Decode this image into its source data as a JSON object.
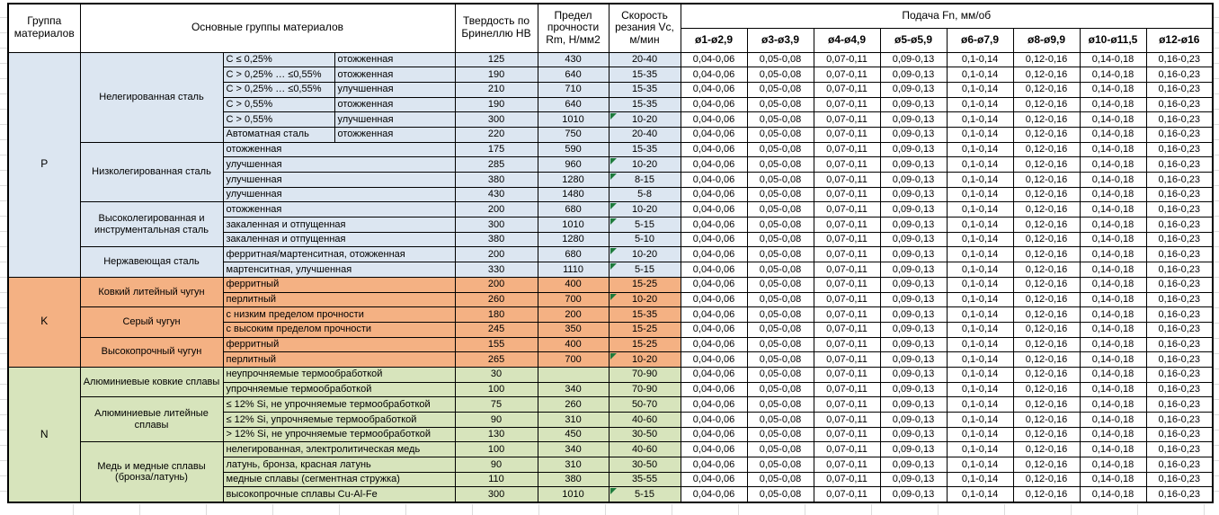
{
  "header": {
    "col_group": "Группа материалов",
    "col_main_groups": "Основные группы материалов",
    "col_hardness": "Твердость по Бринеллю HB",
    "col_strength": "Предел прочности Rm, Н/мм2",
    "col_speed": "Скорость резания Vc, м/мин",
    "feed_title": "Подача Fn, мм/об",
    "feed_columns": [
      "ø1-ø2,9",
      "ø3-ø3,9",
      "ø4-ø4,9",
      "ø5-ø5,9",
      "ø6-ø7,9",
      "ø8-ø9,9",
      "ø10-ø11,5",
      "ø12-ø16"
    ]
  },
  "feed_values": [
    "0,04-0,06",
    "0,05-0,08",
    "0,07-0,11",
    "0,09-0,13",
    "0,1-0,14",
    "0,12-0,16",
    "0,14-0,18",
    "0,16-0,23"
  ],
  "colors": {
    "group_P": "#DCE6F1",
    "group_K": "#F4B183",
    "group_N": "#D7E4BC",
    "note_triangle": "#1E7B3C",
    "border": "#000000"
  },
  "groups": [
    {
      "code": "P",
      "color": "#DCE6F1",
      "subgroups": [
        {
          "name": "Нелегированная сталь",
          "rows": [
            {
              "desc": [
                "C ≤ 0,25%",
                "отожженная"
              ],
              "hb": "125",
              "rm": "430",
              "vc": "20-40",
              "note": false
            },
            {
              "desc": [
                "C > 0,25% … ≤0,55%",
                "отожженная"
              ],
              "hb": "190",
              "rm": "640",
              "vc": "15-35",
              "note": false
            },
            {
              "desc": [
                "C > 0,25% … ≤0,55%",
                "улучшенная"
              ],
              "hb": "210",
              "rm": "710",
              "vc": "15-35",
              "note": false
            },
            {
              "desc": [
                "C > 0,55%",
                "отожженная"
              ],
              "hb": "190",
              "rm": "640",
              "vc": "15-35",
              "note": false
            },
            {
              "desc": [
                "C > 0,55%",
                "улучшенная"
              ],
              "hb": "300",
              "rm": "1010",
              "vc": "10-20",
              "note": true
            },
            {
              "desc": [
                "Автоматная сталь",
                "отожженная"
              ],
              "hb": "220",
              "rm": "750",
              "vc": "20-40",
              "note": false
            }
          ]
        },
        {
          "name": "Низколегированная сталь",
          "rows": [
            {
              "desc": [
                "отожженная"
              ],
              "hb": "175",
              "rm": "590",
              "vc": "15-35",
              "note": false
            },
            {
              "desc": [
                "улучшенная"
              ],
              "hb": "285",
              "rm": "960",
              "vc": "10-20",
              "note": true
            },
            {
              "desc": [
                "улучшенная"
              ],
              "hb": "380",
              "rm": "1280",
              "vc": "8-15",
              "note": true
            },
            {
              "desc": [
                "улучшенная"
              ],
              "hb": "430",
              "rm": "1480",
              "vc": "5-8",
              "note": false
            }
          ]
        },
        {
          "name": "Высоколегированная и инструментальная сталь",
          "rows": [
            {
              "desc": [
                "отожженная"
              ],
              "hb": "200",
              "rm": "680",
              "vc": "10-20",
              "note": true
            },
            {
              "desc": [
                "закаленная и отпущенная"
              ],
              "hb": "300",
              "rm": "1010",
              "vc": "5-15",
              "note": true
            },
            {
              "desc": [
                "закаленная и отпущенная"
              ],
              "hb": "380",
              "rm": "1280",
              "vc": "5-10",
              "note": false
            }
          ]
        },
        {
          "name": "Нержавеющая сталь",
          "rows": [
            {
              "desc": [
                "ферритная/мартенситная, отожженная"
              ],
              "hb": "200",
              "rm": "680",
              "vc": "10-20",
              "note": true
            },
            {
              "desc": [
                "мартенситная, улучшенная"
              ],
              "hb": "330",
              "rm": "1110",
              "vc": "5-15",
              "note": true
            }
          ]
        }
      ]
    },
    {
      "code": "K",
      "color": "#F4B183",
      "subgroups": [
        {
          "name": "Ковкий литейный чугун",
          "rows": [
            {
              "desc": [
                "ферритный"
              ],
              "hb": "200",
              "rm": "400",
              "vc": "15-25",
              "note": false
            },
            {
              "desc": [
                "перлитный"
              ],
              "hb": "260",
              "rm": "700",
              "vc": "10-20",
              "note": true
            }
          ]
        },
        {
          "name": "Серый чугун",
          "rows": [
            {
              "desc": [
                "с низким пределом прочности"
              ],
              "hb": "180",
              "rm": "200",
              "vc": "15-35",
              "note": false
            },
            {
              "desc": [
                "с высоким пределом прочности"
              ],
              "hb": "245",
              "rm": "350",
              "vc": "15-25",
              "note": false
            }
          ]
        },
        {
          "name": "Высокопрочный чугун",
          "rows": [
            {
              "desc": [
                "ферритный"
              ],
              "hb": "155",
              "rm": "400",
              "vc": "15-25",
              "note": false
            },
            {
              "desc": [
                "перлитный"
              ],
              "hb": "265",
              "rm": "700",
              "vc": "10-20",
              "note": true
            }
          ]
        }
      ]
    },
    {
      "code": "N",
      "color": "#D7E4BC",
      "subgroups": [
        {
          "name": "Алюминиевые ковкие сплавы",
          "rows": [
            {
              "desc": [
                "неупрочняемые термообработкой"
              ],
              "hb": "30",
              "rm": "",
              "vc": "70-90",
              "note": false
            },
            {
              "desc": [
                "упрочняемые термообработкой"
              ],
              "hb": "100",
              "rm": "340",
              "vc": "70-90",
              "note": false
            }
          ]
        },
        {
          "name": "Алюминиевые литейные сплавы",
          "rows": [
            {
              "desc": [
                "≤ 12% Si, не упрочняемые термообработкой"
              ],
              "hb": "75",
              "rm": "260",
              "vc": "50-70",
              "note": false
            },
            {
              "desc": [
                "≤ 12% Si, упрочняемые термообработкой"
              ],
              "hb": "90",
              "rm": "310",
              "vc": "40-60",
              "note": false
            },
            {
              "desc": [
                "> 12% Si, не упрочняемые термообработкой"
              ],
              "hb": "130",
              "rm": "450",
              "vc": "30-50",
              "note": false
            }
          ]
        },
        {
          "name": "Медь и медные сплавы (бронза/латунь)",
          "rows": [
            {
              "desc": [
                "нелегированная, электролитическая медь"
              ],
              "hb": "100",
              "rm": "340",
              "vc": "40-60",
              "note": false
            },
            {
              "desc": [
                "латунь, бронза, красная латунь"
              ],
              "hb": "90",
              "rm": "310",
              "vc": "30-50",
              "note": false
            },
            {
              "desc": [
                "медные сплавы (сегментная стружка)"
              ],
              "hb": "110",
              "rm": "380",
              "vc": "35-55",
              "note": false
            },
            {
              "desc": [
                "высокопрочные сплавы Cu-Al-Fe"
              ],
              "hb": "300",
              "rm": "1010",
              "vc": "5-15",
              "note": true
            }
          ]
        }
      ]
    }
  ]
}
